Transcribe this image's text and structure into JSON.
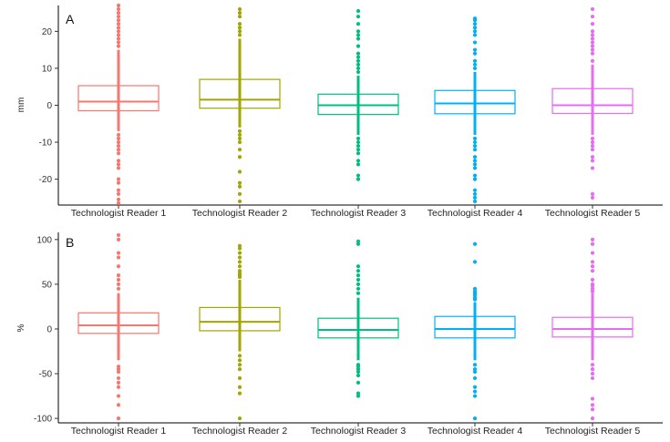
{
  "colors": {
    "Technologist Reader 1": "#F8766D",
    "Technologist Reader 2": "#A3A500",
    "Technologist Reader 3": "#00BF7D",
    "Technologist Reader 4": "#00B0F6",
    "Technologist Reader 5": "#E76BF3"
  },
  "chart_data": [
    {
      "type": "box",
      "panel_label": "A",
      "ylabel": "mm",
      "ylim": [
        -27,
        27
      ],
      "yticks": [
        -20,
        -10,
        0,
        10,
        20
      ],
      "categories": [
        "Technologist Reader 1",
        "Technologist Reader 2",
        "Technologist Reader 3",
        "Technologist Reader 4",
        "Technologist Reader 5"
      ],
      "boxes": [
        {
          "q1": -1.5,
          "median": 1,
          "q3": 5.3,
          "whisker_low": -7,
          "whisker_high": 15,
          "points": [
            -26.5,
            -25.5,
            -24,
            -23,
            -21,
            -20,
            -17,
            -16,
            -15,
            -13,
            -12,
            -11,
            -10,
            -9,
            -8,
            16,
            17,
            18,
            19,
            20,
            21,
            22,
            23,
            24,
            25,
            26,
            27
          ]
        },
        {
          "q1": -0.8,
          "median": 1.5,
          "q3": 7,
          "whisker_low": -6,
          "whisker_high": 18,
          "points": [
            -26,
            -24,
            -22,
            -21,
            -18,
            -14,
            -12,
            -10,
            -9,
            -8,
            -7,
            19,
            20,
            21,
            22,
            24,
            25,
            26
          ]
        },
        {
          "q1": -2.5,
          "median": 0,
          "q3": 3,
          "whisker_low": -8,
          "whisker_high": 8,
          "points": [
            -20,
            -19,
            -16,
            -15,
            -13,
            -12,
            -11,
            -10,
            -9,
            9,
            10,
            11,
            12,
            13,
            14,
            16,
            18,
            19,
            20,
            22,
            24,
            25.5
          ]
        },
        {
          "q1": -2.3,
          "median": 0.5,
          "q3": 4,
          "whisker_low": -8,
          "whisker_high": 9,
          "points": [
            -26,
            -25,
            -24,
            -23,
            -20,
            -19,
            -17,
            -16,
            -15,
            -14,
            -12,
            -11,
            -10,
            -9,
            10,
            11,
            12,
            14,
            15,
            17,
            19,
            20,
            21,
            22,
            23,
            23.5
          ]
        },
        {
          "q1": -2.2,
          "median": 0,
          "q3": 4.5,
          "whisker_low": -8,
          "whisker_high": 11,
          "points": [
            -25,
            -24,
            -17,
            -15,
            -14,
            -12,
            -11,
            -10,
            -9,
            12,
            14,
            15,
            16,
            17,
            18,
            19,
            20,
            22,
            24,
            26
          ]
        }
      ]
    },
    {
      "type": "box",
      "panel_label": "B",
      "ylabel": "%",
      "ylim": [
        -105,
        108
      ],
      "yticks": [
        -100,
        -50,
        0,
        50,
        100
      ],
      "categories": [
        "Technologist Reader 1",
        "Technologist Reader 2",
        "Technologist Reader 3",
        "Technologist Reader 4",
        "Technologist Reader 5"
      ],
      "boxes": [
        {
          "q1": -5,
          "median": 4,
          "q3": 18,
          "whisker_low": -35,
          "whisker_high": 40,
          "points": [
            -100,
            -85,
            -75,
            -65,
            -60,
            -55,
            -48,
            -45,
            -42,
            45,
            50,
            55,
            60,
            70,
            80,
            85,
            100,
            105
          ]
        },
        {
          "q1": -2,
          "median": 8,
          "q3": 24,
          "whisker_low": -25,
          "whisker_high": 55,
          "points": [
            -100,
            -72,
            -65,
            -55,
            -45,
            -40,
            -35,
            -30,
            58,
            60,
            62,
            65,
            70,
            75,
            80,
            85,
            90,
            93
          ]
        },
        {
          "q1": -10,
          "median": -1,
          "q3": 12,
          "whisker_low": -35,
          "whisker_high": 35,
          "points": [
            -75,
            -72,
            -60,
            -52,
            -48,
            -45,
            -42,
            -40,
            40,
            45,
            50,
            55,
            60,
            65,
            70,
            95,
            98
          ]
        },
        {
          "q1": -10,
          "median": 0,
          "q3": 14,
          "whisker_low": -35,
          "whisker_high": 30,
          "points": [
            -100,
            -75,
            -70,
            -65,
            -55,
            -48,
            -45,
            -40,
            33,
            35,
            38,
            40,
            42,
            45,
            75,
            95
          ]
        },
        {
          "q1": -9,
          "median": 0,
          "q3": 13,
          "whisker_low": -35,
          "whisker_high": 40,
          "points": [
            -100,
            -90,
            -85,
            -78,
            -55,
            -50,
            -45,
            -40,
            42,
            45,
            48,
            50,
            55,
            65,
            70,
            75,
            85,
            95,
            100
          ]
        }
      ]
    }
  ]
}
